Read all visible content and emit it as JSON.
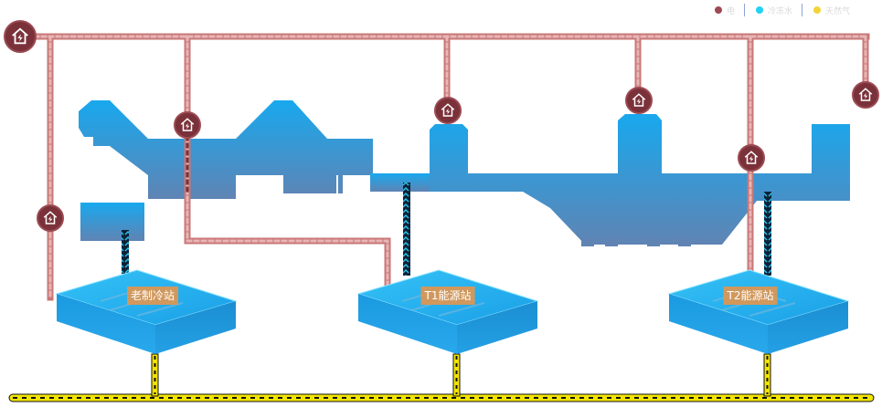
{
  "legend": [
    {
      "name": "electricity-legend",
      "label": "电",
      "color": "#9c4a52"
    },
    {
      "name": "water-legend",
      "label": "冷冻水",
      "color": "#1fd3f3"
    },
    {
      "name": "gas-legend",
      "label": "天然气",
      "color": "#f2d43a"
    }
  ],
  "stations": [
    {
      "name": "old-chiller-station",
      "label": "老制冷站"
    },
    {
      "name": "t1-energy-station",
      "label": "T1能源站"
    },
    {
      "name": "t2-energy-station",
      "label": "T2能源站"
    }
  ],
  "icons": {
    "power_hub": "house-lightning-icon"
  },
  "colors": {
    "building_top": "#1aa2e6",
    "building_bottom": "#5f86b8",
    "power_line": "#d98a8a",
    "hub_fill": "#7a3139",
    "gas_line": "#f2e400",
    "water_line": "#0d2238",
    "station_top": "#25b4f0",
    "station_side": "#1a8fd4"
  }
}
